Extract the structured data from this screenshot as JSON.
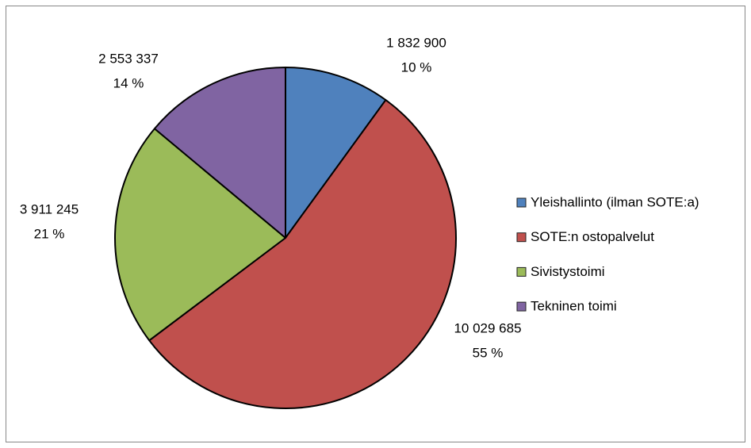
{
  "chart_data": {
    "type": "pie",
    "categories": [
      "Yleishallinto (ilman SOTE:a)",
      "SOTE:n ostopalvelut",
      "Sivistystoimi",
      "Tekninen toimi"
    ],
    "values": [
      1832900,
      10029685,
      3911245,
      2553337
    ],
    "value_labels": [
      "1 832 900",
      "10 029 685",
      "3 911 245",
      "2 553 337"
    ],
    "percentages": [
      10,
      55,
      21,
      14
    ],
    "percentage_labels": [
      "10 %",
      "55 %",
      "21 %",
      "14 %"
    ],
    "colors": [
      "#4f81bd",
      "#c0504d",
      "#9bbb59",
      "#8064a2"
    ],
    "legend": "right"
  }
}
